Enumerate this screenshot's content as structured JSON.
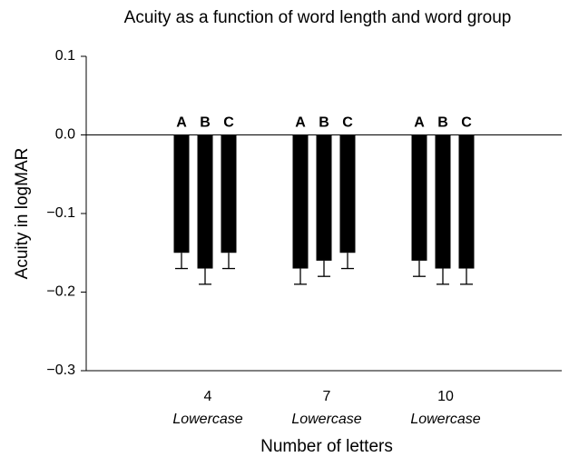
{
  "chart_data": {
    "type": "bar",
    "title": "Acuity as a function of word length and word group",
    "x_label": "Number of letters",
    "y_label": "Acuity in logMAR",
    "categories": [
      "4",
      "7",
      "10"
    ],
    "category_sublabels": [
      "Lowercase",
      "Lowercase",
      "Lowercase"
    ],
    "series": [
      {
        "name": "A",
        "color": "#000000",
        "values": [
          -0.15,
          -0.17,
          -0.16
        ],
        "errors": [
          0.02,
          0.02,
          0.02
        ]
      },
      {
        "name": "B",
        "color": "#000000",
        "values": [
          -0.17,
          -0.16,
          -0.17
        ],
        "errors": [
          0.02,
          0.02,
          0.02
        ]
      },
      {
        "name": "C",
        "color": "#000000",
        "values": [
          -0.15,
          -0.15,
          -0.17
        ],
        "errors": [
          0.02,
          0.02,
          0.02
        ]
      }
    ],
    "ylim": [
      -0.3,
      0.1
    ],
    "yticks": [
      {
        "value": -0.3,
        "label": "−0.3"
      },
      {
        "value": -0.2,
        "label": "−0.2"
      },
      {
        "value": -0.1,
        "label": "−0.1"
      },
      {
        "value": 0,
        "label": "0.0"
      },
      0.1
    ],
    "zero_line": true
  }
}
